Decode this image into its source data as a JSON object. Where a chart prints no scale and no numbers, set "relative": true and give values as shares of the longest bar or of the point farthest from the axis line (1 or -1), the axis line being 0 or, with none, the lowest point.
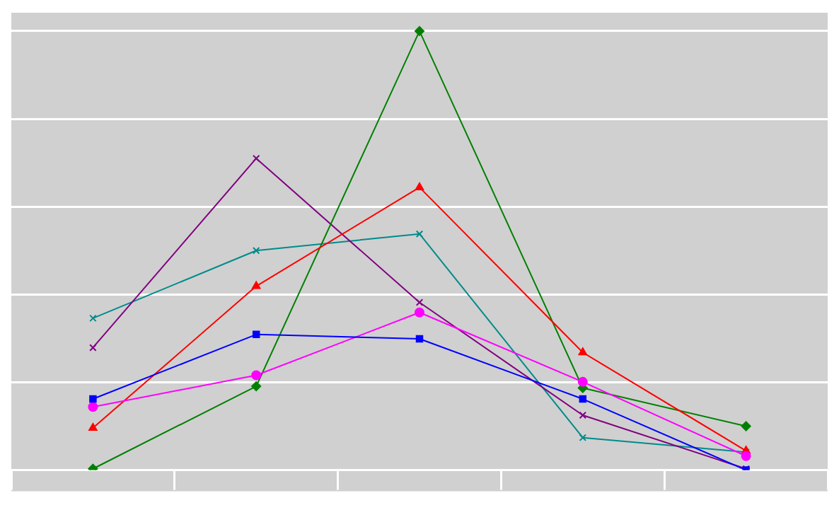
{
  "chart_data": {
    "type": "line",
    "relative": true,
    "categories": [
      null,
      null,
      null,
      null,
      null
    ],
    "grid": "y",
    "legend": false,
    "line_style": "solid",
    "series": [
      {
        "color": "#0000ff",
        "marker": "square",
        "values": [
          0.162,
          0.309,
          0.299,
          0.162,
          0
        ]
      },
      {
        "color": "#ff00ff",
        "marker": "circle",
        "values": [
          0.144,
          0.216,
          0.359,
          0.201,
          0.032
        ]
      },
      {
        "color": "#ff0000",
        "marker": "triangle",
        "values": [
          0.096,
          0.419,
          0.644,
          0.268,
          0.044
        ]
      },
      {
        "color": "#008000",
        "marker": "diamond",
        "values": [
          0.003,
          0.191,
          1,
          0.187,
          0.1
        ]
      },
      {
        "color": "#800080",
        "marker": "cross",
        "values": [
          0.279,
          0.71,
          0.382,
          0.125,
          0.003
        ]
      },
      {
        "color": "#008b8b",
        "marker": "cross",
        "values": [
          0.346,
          0.5,
          0.538,
          0.074,
          0.041
        ]
      }
    ]
  }
}
